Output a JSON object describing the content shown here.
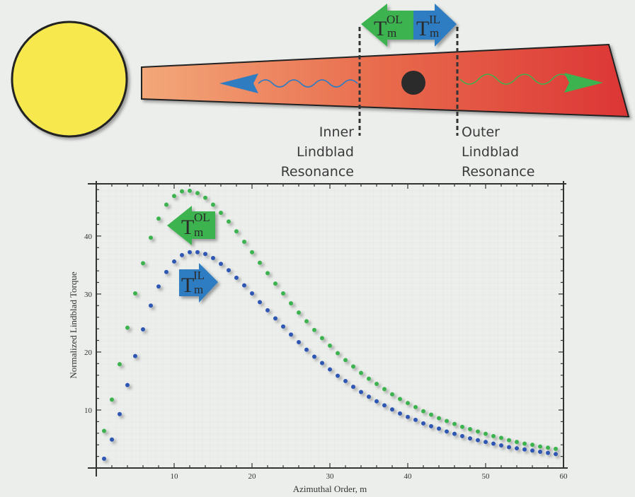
{
  "diagram": {
    "inner_label": [
      "Inner",
      "Lindblad",
      "Resonance"
    ],
    "outer_label": [
      "Outer",
      "Lindblad",
      "Resonance"
    ],
    "torque_symbol": "T",
    "torque_subscript": "m",
    "outer_superscript": "OL",
    "inner_superscript": "IL",
    "colors": {
      "star": "#f7e84e",
      "outer": "#3db34f",
      "inner": "#2f7cc1",
      "disk_left": "#f3a87a",
      "disk_right": "#dc3535",
      "planet": "#2b2b2b"
    }
  },
  "chart_data": {
    "type": "scatter",
    "title": "",
    "xlabel": "Azimuthal Order, m",
    "ylabel": "Normalized Lindblad Torque",
    "xlim": [
      0,
      60
    ],
    "ylim": [
      0,
      49
    ],
    "xticks": [
      10,
      20,
      30,
      40,
      50,
      60
    ],
    "yticks": [
      10,
      20,
      30,
      40
    ],
    "grid": true,
    "x": [
      1,
      2,
      3,
      4,
      5,
      6,
      7,
      8,
      9,
      10,
      11,
      12,
      13,
      14,
      15,
      16,
      17,
      18,
      19,
      20,
      21,
      22,
      23,
      24,
      25,
      26,
      27,
      28,
      29,
      30,
      31,
      32,
      33,
      34,
      35,
      36,
      37,
      38,
      39,
      40,
      41,
      42,
      43,
      44,
      45,
      46,
      47,
      48,
      49,
      50,
      51,
      52,
      53,
      54,
      55,
      56,
      57,
      58,
      59
    ],
    "series": [
      {
        "name": "Outer Lindblad torque T_m^OL",
        "color": "#3db34f",
        "values": [
          6.4,
          11.8,
          17.9,
          24.2,
          30.1,
          35.3,
          39.7,
          43.0,
          45.4,
          46.9,
          47.7,
          47.8,
          47.4,
          46.6,
          45.4,
          44.0,
          42.5,
          40.8,
          39.0,
          37.2,
          35.4,
          33.6,
          31.8,
          30.1,
          28.4,
          26.8,
          25.3,
          23.8,
          22.4,
          21.1,
          19.8,
          18.6,
          17.5,
          16.4,
          15.4,
          14.5,
          13.6,
          12.7,
          11.9,
          11.2,
          10.5,
          9.8,
          9.2,
          8.6,
          8.1,
          7.6,
          7.1,
          6.7,
          6.3,
          5.9,
          5.5,
          5.2,
          4.8,
          4.5,
          4.2,
          4.0,
          3.7,
          3.5,
          3.3
        ]
      },
      {
        "name": "Inner Lindblad torque T_m^IL",
        "color": "#2f57b3",
        "values": [
          1.6,
          4.9,
          9.3,
          14.3,
          19.3,
          23.9,
          28.0,
          31.3,
          33.8,
          35.6,
          36.7,
          37.2,
          37.2,
          36.9,
          36.2,
          35.2,
          34.1,
          32.8,
          31.5,
          30.1,
          28.6,
          27.2,
          25.8,
          24.4,
          23.0,
          21.7,
          20.4,
          19.2,
          18.1,
          17.0,
          15.9,
          15.0,
          14.0,
          13.1,
          12.3,
          11.5,
          10.8,
          10.1,
          9.4,
          8.8,
          8.3,
          7.7,
          7.2,
          6.8,
          6.3,
          5.9,
          5.5,
          5.1,
          4.8,
          4.5,
          4.2,
          3.9,
          3.6,
          3.4,
          3.2,
          3.0,
          2.8,
          2.6,
          2.4
        ]
      }
    ]
  }
}
